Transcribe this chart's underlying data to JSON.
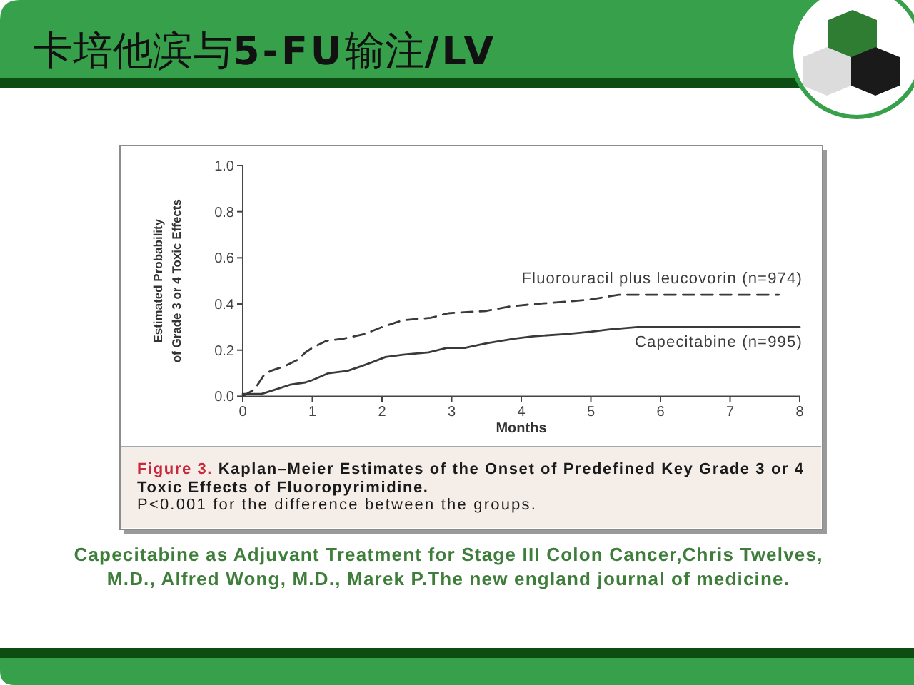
{
  "chart_data": {
    "type": "line",
    "title": "卡培他滨与5-FU输注/LV",
    "xlabel": "Months",
    "ylabel": "Estimated Probability\nof Grade 3 or 4 Toxic Effects",
    "xlim": [
      0,
      8
    ],
    "ylim": [
      0,
      1
    ],
    "xticks": [
      0,
      1,
      2,
      3,
      4,
      5,
      6,
      7,
      8
    ],
    "yticks": [
      {
        "value": 0,
        "label": "0.0"
      },
      0.2,
      0.4,
      0.6,
      0.8,
      {
        "value": 1,
        "label": "1.0"
      }
    ],
    "series": [
      {
        "name": "Fluorouracil plus leucovorin (n=974)",
        "color": "#3a3a3a",
        "line_style": "dashed",
        "x": [
          0,
          0.17,
          0.3,
          0.4,
          0.6,
          0.8,
          0.9,
          1.0,
          1.2,
          1.45,
          1.75,
          2.0,
          2.3,
          2.7,
          2.95,
          3.5,
          3.85,
          4.2,
          4.65,
          5.0,
          5.4,
          5.8,
          7.7
        ],
        "values": [
          0,
          0.03,
          0.09,
          0.11,
          0.13,
          0.16,
          0.19,
          0.21,
          0.24,
          0.25,
          0.27,
          0.3,
          0.33,
          0.34,
          0.36,
          0.37,
          0.39,
          0.4,
          0.41,
          0.42,
          0.44,
          0.44,
          0.44
        ]
      },
      {
        "name": "Capecitabine (n=995)",
        "color": "#3a3a3a",
        "line_style": "solid",
        "x": [
          0,
          0.27,
          0.48,
          0.68,
          0.9,
          1.0,
          1.23,
          1.5,
          1.7,
          1.88,
          2.05,
          2.3,
          2.67,
          2.94,
          3.2,
          3.5,
          3.9,
          4.17,
          4.65,
          5.0,
          5.27,
          5.67,
          5.95,
          8.0
        ],
        "values": [
          0.01,
          0.01,
          0.03,
          0.05,
          0.06,
          0.07,
          0.1,
          0.11,
          0.13,
          0.15,
          0.17,
          0.18,
          0.19,
          0.21,
          0.21,
          0.23,
          0.25,
          0.26,
          0.27,
          0.28,
          0.29,
          0.3,
          0.3,
          0.3
        ]
      }
    ],
    "annotations": [
      "Figure 3. Kaplan–Meier Estimates of the Onset of Predefined Key Grade 3 or 4 Toxic Effects of Fluoropyrimidine.",
      "P<0.001 for the difference between the groups.",
      "Capecitabine as Adjuvant Treatment for Stage III Colon Cancer,Chris Twelves, M.D., Alfred Wong, M.D., Marek P.The new england journal of medicine."
    ]
  }
}
